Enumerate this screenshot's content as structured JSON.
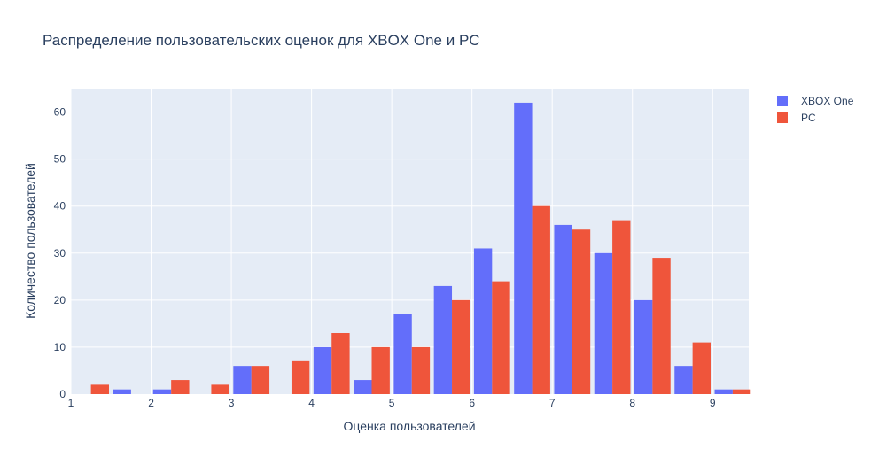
{
  "chart_data": {
    "type": "bar",
    "title": "Распределение пользовательских оценок для XBOX One и PC",
    "xlabel": "Оценка пользователей",
    "ylabel": "Количество пользователей",
    "xlim": [
      1,
      9.45
    ],
    "ylim": [
      0,
      65
    ],
    "x_ticks": [
      1,
      2,
      3,
      4,
      5,
      6,
      7,
      8,
      9
    ],
    "y_ticks": [
      0,
      10,
      20,
      30,
      40,
      50,
      60
    ],
    "grid": true,
    "legend_position": "top-right",
    "bin_centers": [
      1.25,
      1.75,
      2.25,
      2.75,
      3.25,
      3.75,
      4.25,
      4.75,
      5.25,
      5.75,
      6.25,
      6.75,
      7.25,
      7.75,
      8.25,
      8.75,
      9.25
    ],
    "series": [
      {
        "name": "XBOX One",
        "color": "#636efa",
        "values": [
          0,
          1,
          1,
          0,
          6,
          0,
          10,
          3,
          17,
          23,
          31,
          62,
          36,
          30,
          20,
          6,
          1
        ]
      },
      {
        "name": "PC",
        "color": "#ef553b",
        "values": [
          2,
          0,
          3,
          2,
          6,
          7,
          13,
          10,
          10,
          20,
          24,
          40,
          35,
          37,
          29,
          11,
          1
        ]
      }
    ]
  }
}
